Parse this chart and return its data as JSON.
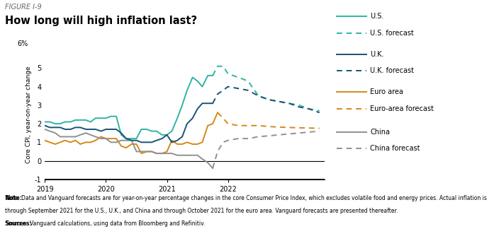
{
  "figure_label": "FIGURE I-9",
  "title": "How long will high inflation last?",
  "ylabel": "Core CPI, year-on-year change",
  "ylim": [
    -1,
    6
  ],
  "background_color": "#ffffff",
  "us_color": "#2db5a3",
  "uk_color": "#1a5276",
  "euro_color": "#d4891a",
  "china_color": "#909090",
  "us_actual_x": [
    2019.0,
    2019.08,
    2019.17,
    2019.25,
    2019.33,
    2019.42,
    2019.5,
    2019.58,
    2019.67,
    2019.75,
    2019.83,
    2019.92,
    2020.0,
    2020.08,
    2020.17,
    2020.25,
    2020.33,
    2020.42,
    2020.5,
    2020.58,
    2020.67,
    2020.75,
    2020.83,
    2020.92,
    2021.0,
    2021.08,
    2021.17,
    2021.25,
    2021.33,
    2021.42,
    2021.5,
    2021.58,
    2021.67,
    2021.75
  ],
  "us_actual_y": [
    2.1,
    2.1,
    2.0,
    2.0,
    2.1,
    2.1,
    2.2,
    2.2,
    2.2,
    2.1,
    2.3,
    2.3,
    2.3,
    2.4,
    2.4,
    1.4,
    1.2,
    1.2,
    1.2,
    1.7,
    1.7,
    1.6,
    1.6,
    1.4,
    1.4,
    1.6,
    2.3,
    3.0,
    3.8,
    4.5,
    4.3,
    4.0,
    4.6,
    4.6
  ],
  "us_forecast_x": [
    2021.75,
    2021.83,
    2021.92,
    2022.0,
    2022.17,
    2022.33,
    2022.5,
    2022.67,
    2022.83,
    2023.0,
    2023.17,
    2023.33,
    2023.5
  ],
  "us_forecast_y": [
    4.6,
    5.1,
    5.1,
    4.7,
    4.5,
    4.3,
    3.5,
    3.3,
    3.2,
    3.1,
    3.0,
    2.8,
    2.7
  ],
  "uk_actual_x": [
    2019.0,
    2019.08,
    2019.17,
    2019.25,
    2019.33,
    2019.42,
    2019.5,
    2019.58,
    2019.67,
    2019.75,
    2019.83,
    2019.92,
    2020.0,
    2020.08,
    2020.17,
    2020.25,
    2020.33,
    2020.42,
    2020.5,
    2020.58,
    2020.67,
    2020.75,
    2020.83,
    2020.92,
    2021.0,
    2021.08,
    2021.17,
    2021.25,
    2021.33,
    2021.42,
    2021.5,
    2021.58,
    2021.67,
    2021.75
  ],
  "uk_actual_y": [
    1.9,
    1.8,
    1.8,
    1.8,
    1.7,
    1.7,
    1.8,
    1.8,
    1.7,
    1.7,
    1.7,
    1.6,
    1.7,
    1.7,
    1.7,
    1.5,
    1.2,
    1.1,
    1.1,
    1.0,
    1.0,
    1.0,
    1.1,
    1.2,
    1.4,
    1.0,
    1.1,
    1.3,
    2.0,
    2.3,
    2.8,
    3.1,
    3.1,
    3.1
  ],
  "uk_forecast_x": [
    2021.75,
    2021.83,
    2021.92,
    2022.0,
    2022.17,
    2022.33,
    2022.5,
    2022.67,
    2022.83,
    2023.0,
    2023.17,
    2023.33,
    2023.5
  ],
  "uk_forecast_y": [
    3.1,
    3.6,
    3.8,
    4.0,
    3.9,
    3.8,
    3.5,
    3.3,
    3.2,
    3.1,
    2.9,
    2.8,
    2.6
  ],
  "euro_actual_x": [
    2019.0,
    2019.08,
    2019.17,
    2019.25,
    2019.33,
    2019.42,
    2019.5,
    2019.58,
    2019.67,
    2019.75,
    2019.83,
    2019.92,
    2020.0,
    2020.08,
    2020.17,
    2020.25,
    2020.33,
    2020.42,
    2020.5,
    2020.58,
    2020.67,
    2020.75,
    2020.83,
    2020.92,
    2021.0,
    2021.08,
    2021.17,
    2021.25,
    2021.33,
    2021.42,
    2021.5,
    2021.58,
    2021.67,
    2021.75,
    2021.83
  ],
  "euro_actual_y": [
    1.1,
    1.0,
    0.9,
    1.0,
    1.1,
    1.0,
    1.1,
    0.9,
    1.0,
    1.0,
    1.1,
    1.3,
    1.2,
    1.2,
    1.2,
    0.8,
    0.7,
    0.9,
    0.9,
    0.4,
    0.5,
    0.5,
    0.4,
    0.4,
    0.5,
    1.1,
    0.9,
    0.9,
    1.0,
    0.9,
    0.9,
    1.0,
    1.9,
    2.0,
    2.6
  ],
  "euro_forecast_x": [
    2021.83,
    2021.92,
    2022.0,
    2022.17,
    2022.33,
    2022.5,
    2022.67,
    2022.83,
    2023.0,
    2023.17,
    2023.33,
    2023.5
  ],
  "euro_forecast_y": [
    2.6,
    2.3,
    2.0,
    1.9,
    1.9,
    1.9,
    1.85,
    1.82,
    1.8,
    1.78,
    1.77,
    1.75
  ],
  "china_actual_x": [
    2019.0,
    2019.08,
    2019.17,
    2019.25,
    2019.33,
    2019.42,
    2019.5,
    2019.58,
    2019.67,
    2019.75,
    2019.83,
    2019.92,
    2020.0,
    2020.08,
    2020.17,
    2020.25,
    2020.33,
    2020.42,
    2020.5,
    2020.58,
    2020.67,
    2020.75,
    2020.83,
    2020.92,
    2021.0,
    2021.08,
    2021.17,
    2021.25,
    2021.33,
    2021.42,
    2021.5,
    2021.58,
    2021.67,
    2021.75
  ],
  "china_actual_y": [
    1.7,
    1.6,
    1.5,
    1.3,
    1.3,
    1.3,
    1.3,
    1.4,
    1.5,
    1.4,
    1.3,
    1.2,
    1.2,
    1.0,
    1.0,
    1.1,
    1.1,
    1.1,
    0.5,
    0.5,
    0.5,
    0.5,
    0.4,
    0.4,
    0.4,
    0.4,
    0.3,
    0.3,
    0.3,
    0.3,
    0.3,
    0.1,
    -0.1,
    -0.4
  ],
  "china_forecast_x": [
    2021.75,
    2021.83,
    2021.92,
    2022.0,
    2022.17,
    2022.33,
    2022.5,
    2022.67,
    2022.83,
    2023.0,
    2023.17,
    2023.33,
    2023.5
  ],
  "china_forecast_y": [
    -0.4,
    0.5,
    1.0,
    1.1,
    1.2,
    1.2,
    1.3,
    1.35,
    1.4,
    1.45,
    1.5,
    1.55,
    1.6
  ]
}
